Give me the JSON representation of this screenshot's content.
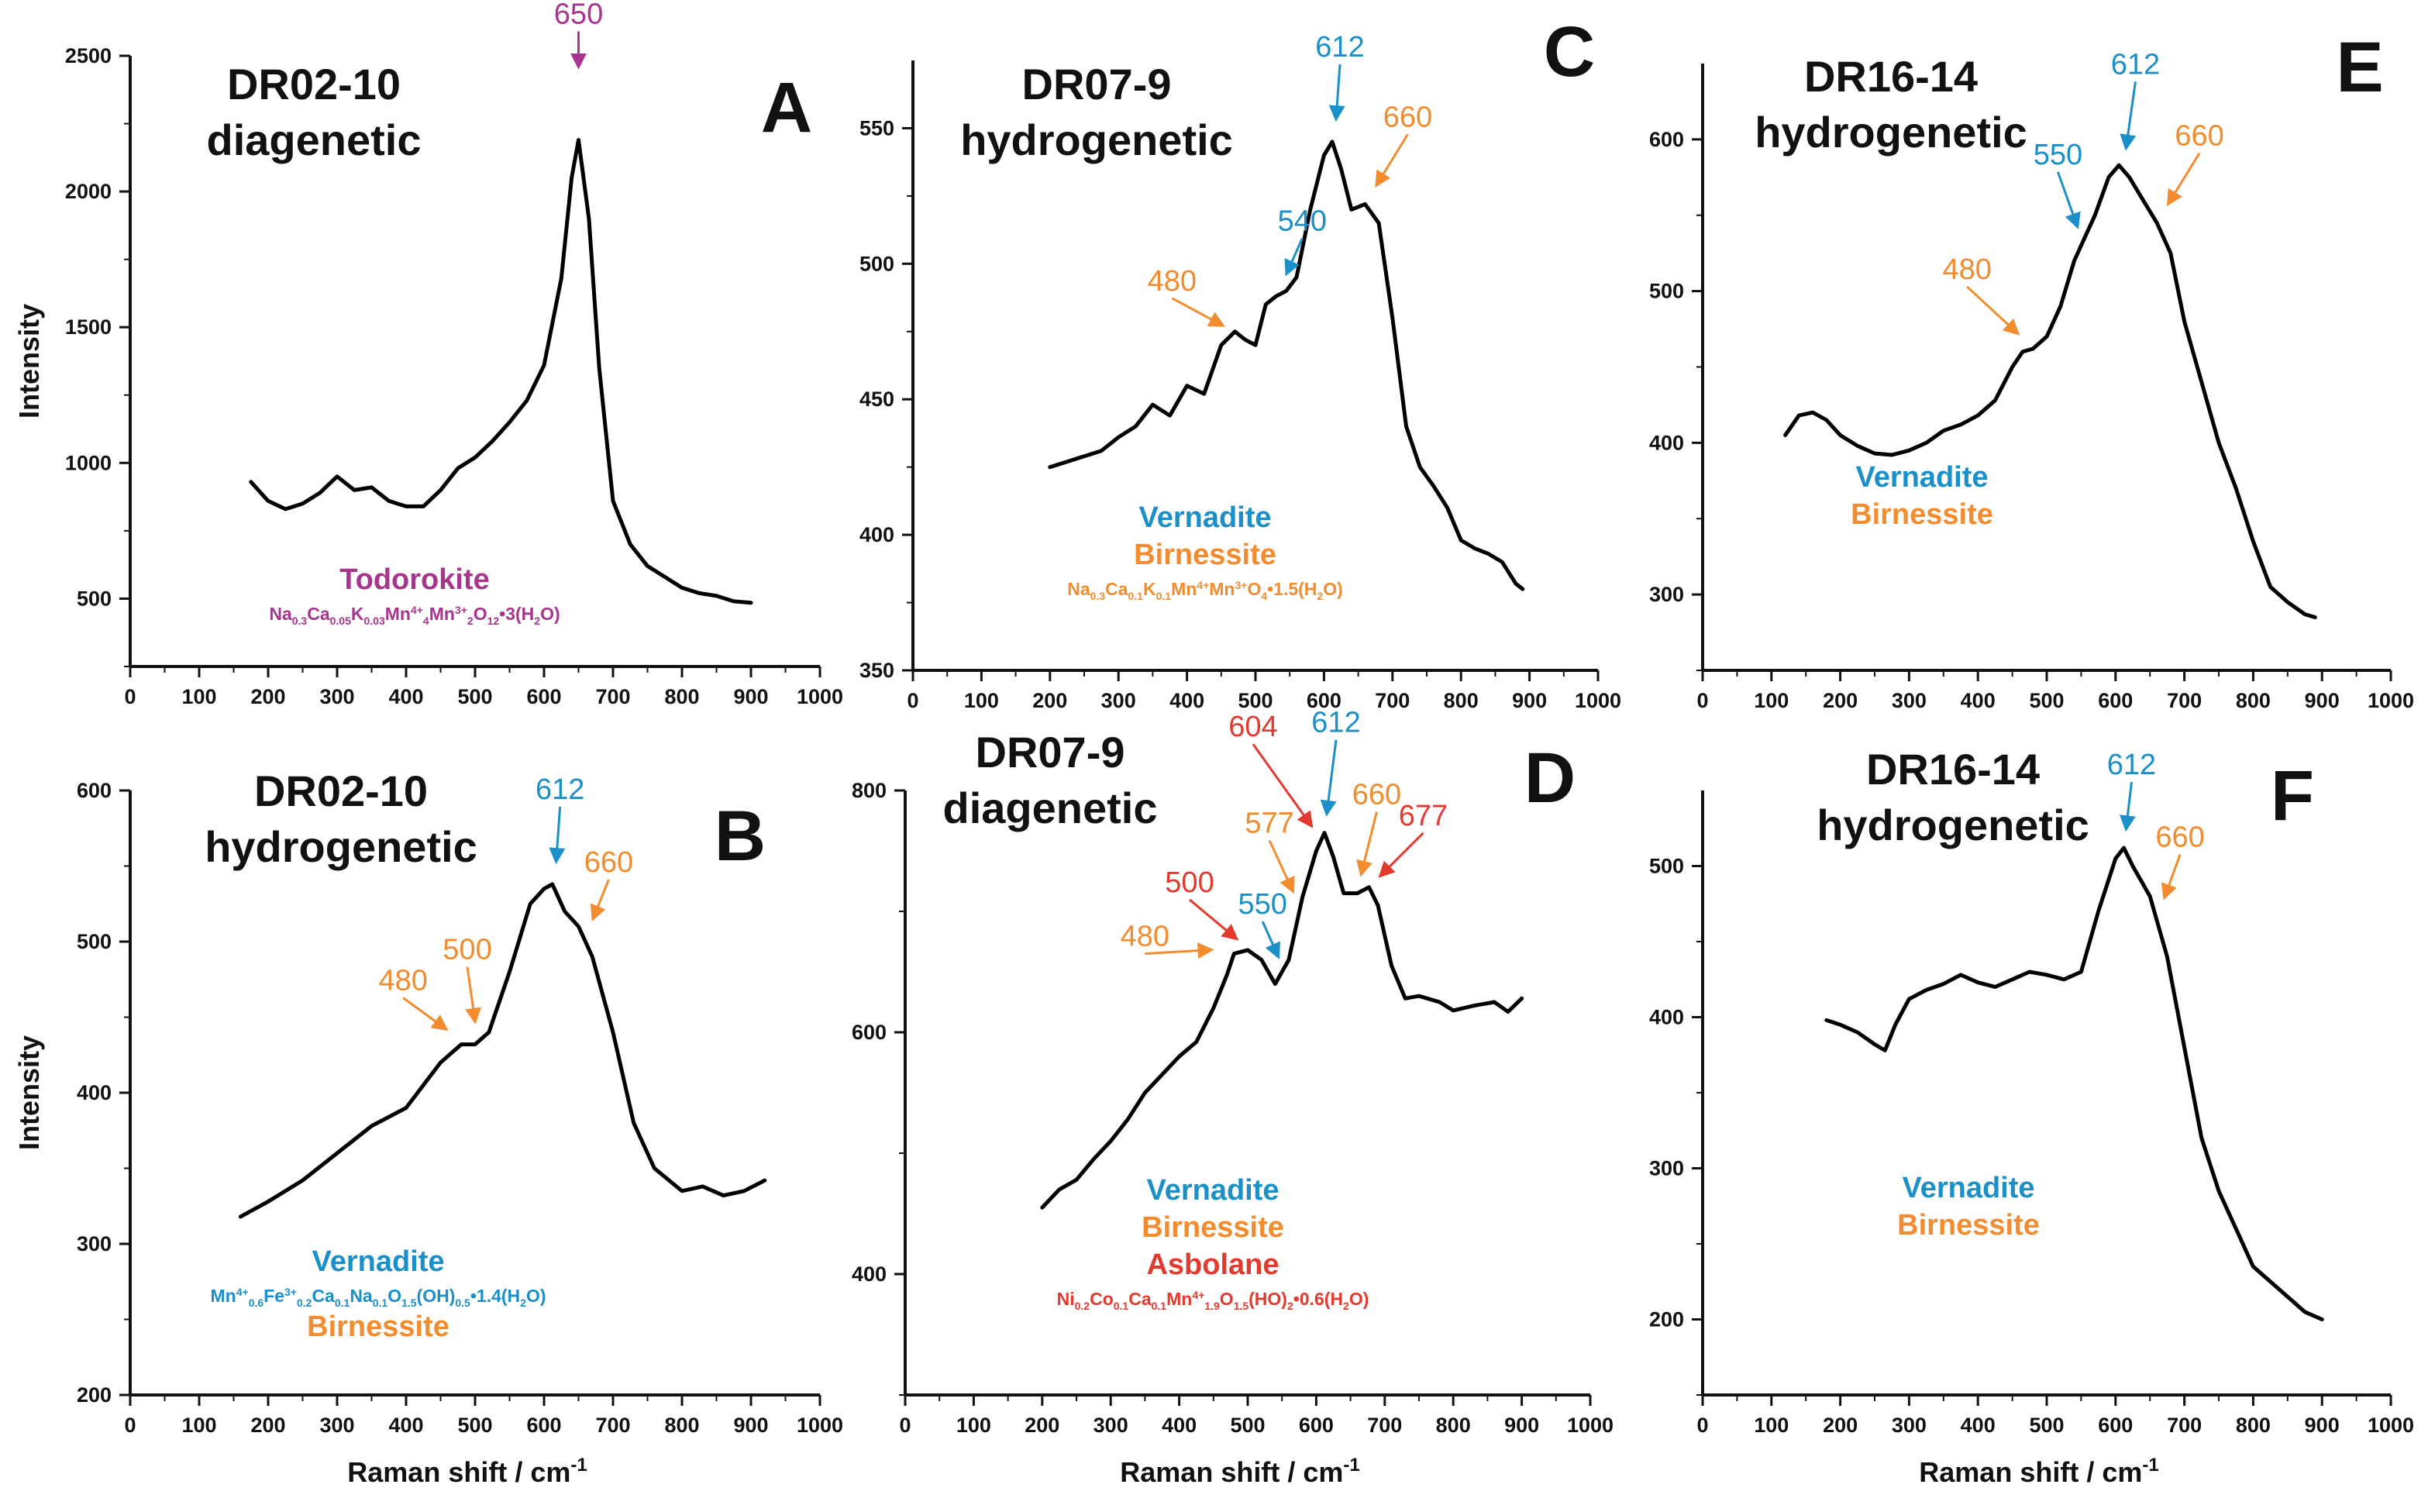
{
  "colors": {
    "blue": "#1a8fc8",
    "orange": "#f28c2f",
    "red": "#e23a2e",
    "purple": "#a8348f",
    "black": "#111111"
  },
  "ylabel": "Intensity",
  "xlabel_text": "Raman shift / cm",
  "xlabel_sup": "-1",
  "chart_data": [
    {
      "id": "A",
      "type": "line",
      "title": [
        "DR02-10",
        "diagenetic"
      ],
      "xlim": [
        0,
        1000
      ],
      "xticks": [
        0,
        100,
        200,
        300,
        400,
        500,
        600,
        700,
        800,
        900,
        1000
      ],
      "ylim": [
        250,
        2500
      ],
      "yticks": [
        500,
        1000,
        1500,
        2000,
        2500
      ],
      "show_ylabel": true,
      "show_xlabel": false,
      "x": [
        175,
        200,
        225,
        250,
        275,
        300,
        325,
        350,
        375,
        400,
        425,
        450,
        475,
        500,
        525,
        550,
        575,
        600,
        625,
        640,
        650,
        665,
        680,
        700,
        725,
        750,
        775,
        800,
        825,
        850,
        875,
        900
      ],
      "y": [
        930,
        860,
        830,
        850,
        890,
        950,
        900,
        910,
        860,
        840,
        840,
        900,
        980,
        1020,
        1080,
        1150,
        1230,
        1360,
        1680,
        2050,
        2190,
        1900,
        1350,
        860,
        700,
        620,
        580,
        540,
        520,
        510,
        490,
        485
      ],
      "annotations": [
        {
          "text": "650",
          "x": 650,
          "color": "purple"
        }
      ],
      "minerals": [
        {
          "name": "Todorokite",
          "color": "purple",
          "formula": {
            "segs": [
              [
                "Na",
                "n"
              ],
              [
                "0.3",
                "s"
              ],
              [
                "Ca",
                "n"
              ],
              [
                "0.05",
                "s"
              ],
              [
                "K",
                "n"
              ],
              [
                "0.03",
                "s"
              ],
              [
                "Mn",
                "n"
              ],
              [
                "4+",
                "p"
              ],
              [
                "4",
                "s"
              ],
              [
                "Mn",
                "n"
              ],
              [
                "3+",
                "p"
              ],
              [
                "2",
                "s"
              ],
              [
                "O",
                "n"
              ],
              [
                "12",
                "s"
              ],
              [
                "•3(H",
                "n"
              ],
              [
                "2",
                "s"
              ],
              [
                "O)",
                "n"
              ]
            ],
            "color": "purple"
          }
        }
      ]
    },
    {
      "id": "B",
      "type": "line",
      "title": [
        "DR02-10",
        "hydrogenetic"
      ],
      "xlim": [
        0,
        1000
      ],
      "xticks": [
        0,
        100,
        200,
        300,
        400,
        500,
        600,
        700,
        800,
        900,
        1000
      ],
      "ylim": [
        200,
        600
      ],
      "yticks": [
        200,
        300,
        400,
        500,
        600
      ],
      "show_ylabel": true,
      "show_xlabel": true,
      "x": [
        160,
        200,
        250,
        300,
        350,
        400,
        450,
        480,
        500,
        520,
        550,
        580,
        600,
        612,
        630,
        650,
        670,
        700,
        730,
        760,
        800,
        830,
        860,
        890,
        920
      ],
      "y": [
        318,
        328,
        342,
        360,
        378,
        390,
        420,
        432,
        432,
        440,
        480,
        525,
        535,
        538,
        520,
        510,
        490,
        440,
        380,
        350,
        335,
        338,
        332,
        335,
        342
      ],
      "annotations": [
        {
          "text": "480",
          "x": 480,
          "color": "orange"
        },
        {
          "text": "500",
          "x": 500,
          "color": "orange"
        },
        {
          "text": "612",
          "x": 612,
          "color": "blue"
        },
        {
          "text": "660",
          "x": 660,
          "color": "orange"
        }
      ],
      "minerals": [
        {
          "name": "Vernadite",
          "color": "blue",
          "formula": {
            "segs": [
              [
                "Mn",
                "n"
              ],
              [
                "4+",
                "p"
              ],
              [
                "0.6",
                "s"
              ],
              [
                "Fe",
                "n"
              ],
              [
                "3+",
                "p"
              ],
              [
                "0.2",
                "s"
              ],
              [
                "Ca",
                "n"
              ],
              [
                "0.1",
                "s"
              ],
              [
                "Na",
                "n"
              ],
              [
                "0.1",
                "s"
              ],
              [
                "O",
                "n"
              ],
              [
                "1.5",
                "s"
              ],
              [
                "(OH)",
                "n"
              ],
              [
                "0.5",
                "s"
              ],
              [
                "•1.4(H",
                "n"
              ],
              [
                "2",
                "s"
              ],
              [
                "O)",
                "n"
              ]
            ],
            "color": "blue"
          }
        },
        {
          "name": "Birnessite",
          "color": "orange"
        }
      ]
    },
    {
      "id": "C",
      "type": "line",
      "title": [
        "DR07-9",
        "hydrogenetic"
      ],
      "xlim": [
        0,
        1000
      ],
      "xticks": [
        0,
        100,
        200,
        300,
        400,
        500,
        600,
        700,
        800,
        900,
        1000
      ],
      "ylim": [
        350,
        575
      ],
      "yticks": [
        350,
        400,
        450,
        500,
        550
      ],
      "show_ylabel": false,
      "show_xlabel": false,
      "x": [
        200,
        225,
        250,
        275,
        300,
        325,
        350,
        375,
        400,
        425,
        450,
        470,
        485,
        500,
        515,
        530,
        545,
        560,
        580,
        600,
        612,
        625,
        640,
        660,
        680,
        700,
        720,
        740,
        760,
        780,
        800,
        820,
        840,
        860,
        880,
        890
      ],
      "y": [
        425,
        427,
        429,
        431,
        436,
        440,
        448,
        444,
        455,
        452,
        470,
        475,
        472,
        470,
        485,
        488,
        490,
        495,
        520,
        540,
        545,
        535,
        520,
        522,
        515,
        480,
        440,
        425,
        418,
        410,
        398,
        395,
        393,
        390,
        382,
        380
      ],
      "annotations": [
        {
          "text": "480",
          "x": 480,
          "color": "orange"
        },
        {
          "text": "540",
          "x": 540,
          "color": "blue"
        },
        {
          "text": "612",
          "x": 612,
          "color": "blue"
        },
        {
          "text": "660",
          "x": 660,
          "color": "orange"
        }
      ],
      "minerals": [
        {
          "name": "Vernadite",
          "color": "blue"
        },
        {
          "name": "Birnessite",
          "color": "orange",
          "formula": {
            "segs": [
              [
                "Na",
                "n"
              ],
              [
                "0.3",
                "s"
              ],
              [
                "Ca",
                "n"
              ],
              [
                "0.1",
                "s"
              ],
              [
                "K",
                "n"
              ],
              [
                "0.1",
                "s"
              ],
              [
                "Mn",
                "n"
              ],
              [
                "4+",
                "p"
              ],
              [
                "Mn",
                "n"
              ],
              [
                "3+",
                "p"
              ],
              [
                "O",
                "n"
              ],
              [
                "4",
                "s"
              ],
              [
                "•1.5(H",
                "n"
              ],
              [
                "2",
                "s"
              ],
              [
                "O)",
                "n"
              ]
            ],
            "color": "orange"
          }
        }
      ]
    },
    {
      "id": "D",
      "type": "line",
      "title": [
        "DR07-9",
        "diagenetic"
      ],
      "xlim": [
        0,
        1000
      ],
      "xticks": [
        0,
        100,
        200,
        300,
        400,
        500,
        600,
        700,
        800,
        900,
        1000
      ],
      "ylim": [
        300,
        800
      ],
      "yticks": [
        400,
        600,
        800
      ],
      "show_ylabel": false,
      "show_xlabel": true,
      "x": [
        200,
        225,
        250,
        275,
        300,
        325,
        350,
        375,
        400,
        425,
        450,
        470,
        480,
        500,
        520,
        540,
        560,
        580,
        600,
        612,
        625,
        640,
        660,
        677,
        690,
        710,
        730,
        750,
        780,
        800,
        830,
        860,
        880,
        900
      ],
      "y": [
        455,
        470,
        478,
        495,
        510,
        528,
        550,
        565,
        580,
        592,
        620,
        648,
        665,
        668,
        660,
        640,
        660,
        712,
        750,
        765,
        745,
        715,
        715,
        720,
        705,
        655,
        628,
        630,
        625,
        618,
        622,
        625,
        617,
        628
      ],
      "annotations": [
        {
          "text": "480",
          "x": 480,
          "color": "orange"
        },
        {
          "text": "500",
          "x": 500,
          "color": "red"
        },
        {
          "text": "550",
          "x": 550,
          "color": "blue"
        },
        {
          "text": "577",
          "x": 577,
          "color": "orange"
        },
        {
          "text": "604",
          "x": 604,
          "color": "red"
        },
        {
          "text": "612",
          "x": 612,
          "color": "blue"
        },
        {
          "text": "660",
          "x": 660,
          "color": "orange"
        },
        {
          "text": "677",
          "x": 677,
          "color": "red"
        }
      ],
      "minerals": [
        {
          "name": "Vernadite",
          "color": "blue"
        },
        {
          "name": "Birnessite",
          "color": "orange"
        },
        {
          "name": "Asbolane",
          "color": "red",
          "formula": {
            "segs": [
              [
                "Ni",
                "n"
              ],
              [
                "0.2",
                "s"
              ],
              [
                "Co",
                "n"
              ],
              [
                "0.1",
                "s"
              ],
              [
                "Ca",
                "n"
              ],
              [
                "0.1",
                "s"
              ],
              [
                "Mn",
                "n"
              ],
              [
                "4+",
                "p"
              ],
              [
                "1.9",
                "s"
              ],
              [
                "O",
                "n"
              ],
              [
                "1.5",
                "s"
              ],
              [
                "(HO)",
                "n"
              ],
              [
                "2",
                "s"
              ],
              [
                "•0.6(H",
                "n"
              ],
              [
                "2",
                "s"
              ],
              [
                "O)",
                "n"
              ]
            ],
            "color": "red"
          }
        }
      ]
    },
    {
      "id": "E",
      "type": "line",
      "title": [
        "DR16-14",
        "hydrogenetic"
      ],
      "xlim": [
        0,
        1000
      ],
      "xticks": [
        0,
        100,
        200,
        300,
        400,
        500,
        600,
        700,
        800,
        900,
        1000
      ],
      "ylim": [
        250,
        650
      ],
      "yticks": [
        300,
        400,
        500,
        600
      ],
      "show_ylabel": false,
      "show_xlabel": false,
      "x": [
        120,
        140,
        160,
        180,
        200,
        225,
        250,
        275,
        300,
        325,
        350,
        375,
        400,
        425,
        450,
        465,
        480,
        500,
        520,
        540,
        555,
        570,
        590,
        605,
        620,
        640,
        660,
        680,
        700,
        725,
        750,
        775,
        800,
        825,
        850,
        875,
        890
      ],
      "y": [
        405,
        418,
        420,
        415,
        405,
        398,
        393,
        392,
        395,
        400,
        408,
        412,
        418,
        428,
        450,
        460,
        462,
        470,
        490,
        520,
        535,
        550,
        575,
        583,
        575,
        560,
        545,
        525,
        480,
        440,
        400,
        370,
        335,
        305,
        295,
        287,
        285
      ],
      "annotations": [
        {
          "text": "480",
          "x": 480,
          "color": "orange"
        },
        {
          "text": "550",
          "x": 550,
          "color": "blue"
        },
        {
          "text": "612",
          "x": 612,
          "color": "blue"
        },
        {
          "text": "660",
          "x": 660,
          "color": "orange"
        }
      ],
      "minerals": [
        {
          "name": "Vernadite",
          "color": "blue"
        },
        {
          "name": "Birnessite",
          "color": "orange"
        }
      ]
    },
    {
      "id": "F",
      "type": "line",
      "title": [
        "DR16-14",
        "hydrogenetic"
      ],
      "xlim": [
        0,
        1000
      ],
      "xticks": [
        0,
        100,
        200,
        300,
        400,
        500,
        600,
        700,
        800,
        900,
        1000
      ],
      "ylim": [
        150,
        550
      ],
      "yticks": [
        200,
        300,
        400,
        500
      ],
      "show_ylabel": false,
      "show_xlabel": true,
      "x": [
        180,
        200,
        225,
        250,
        265,
        280,
        300,
        325,
        350,
        375,
        400,
        425,
        450,
        475,
        500,
        525,
        550,
        575,
        600,
        612,
        625,
        650,
        675,
        700,
        725,
        750,
        775,
        800,
        825,
        850,
        875,
        900
      ],
      "y": [
        398,
        395,
        390,
        382,
        378,
        395,
        412,
        418,
        422,
        428,
        423,
        420,
        425,
        430,
        428,
        425,
        430,
        470,
        505,
        512,
        500,
        480,
        440,
        380,
        320,
        285,
        260,
        235,
        225,
        215,
        205,
        200
      ],
      "annotations": [
        {
          "text": "612",
          "x": 612,
          "color": "blue"
        },
        {
          "text": "660",
          "x": 660,
          "color": "orange"
        }
      ],
      "minerals": [
        {
          "name": "Vernadite",
          "color": "blue"
        },
        {
          "name": "Birnessite",
          "color": "orange"
        }
      ]
    }
  ]
}
